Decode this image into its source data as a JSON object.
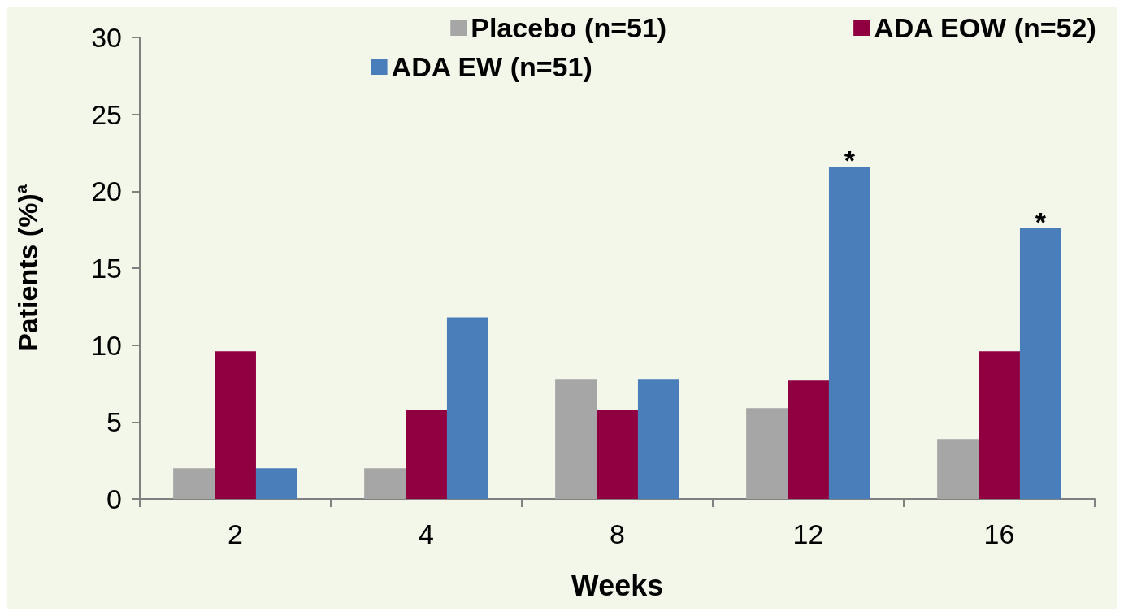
{
  "chart_data": {
    "type": "bar",
    "xlabel": "Weeks",
    "ylabel": "Patients (%)$^{a}$",
    "categories": [
      "2",
      "4",
      "8",
      "12",
      "16"
    ],
    "series": [
      {
        "name": "Placebo (n=51)",
        "color": "#a6a6a6",
        "values": [
          2.0,
          2.0,
          7.8,
          5.9,
          3.9
        ]
      },
      {
        "name": "ADA EOW (n=52)",
        "color": "#900040",
        "values": [
          9.6,
          5.8,
          5.8,
          7.7,
          9.6
        ]
      },
      {
        "name": "ADA EW (n=51)",
        "color": "#4a7eba",
        "values": [
          2.0,
          11.8,
          7.8,
          21.6,
          17.6
        ]
      }
    ],
    "annotations": [
      "*",
      "*"
    ],
    "ylim": [
      0,
      30
    ],
    "yticks": [
      0,
      5,
      10,
      15,
      20,
      25,
      30
    ],
    "grid": false,
    "legend": "top right"
  }
}
